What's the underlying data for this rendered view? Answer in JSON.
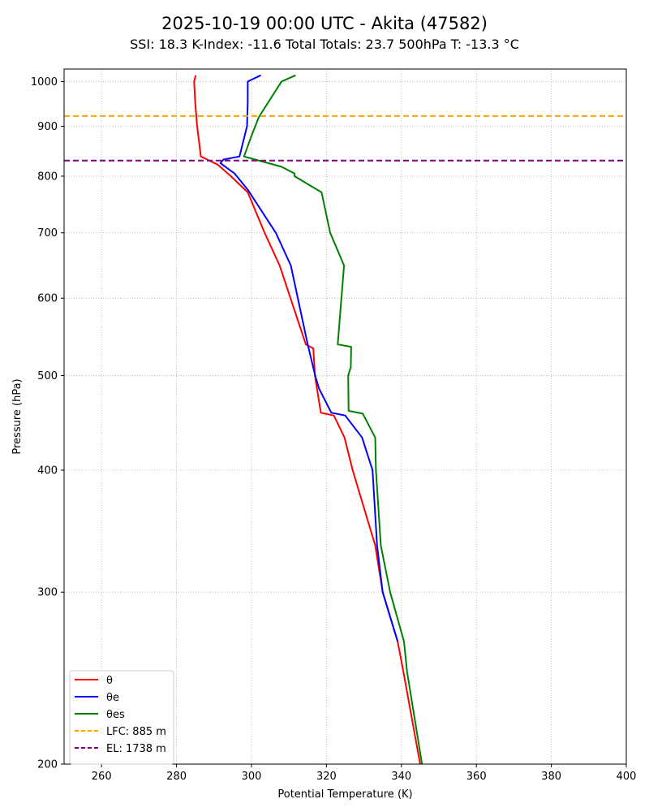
{
  "chart_data": {
    "type": "line",
    "title": "2025-10-19 00:00 UTC - Akita (47582)",
    "subtitle": "SSI: 18.3   K-Index: -11.6   Total Totals: 23.7   500hPa T: -13.3 °C",
    "xlabel": "Potential Temperature (K)",
    "ylabel": "Pressure (hPa)",
    "xlim": [
      250,
      400
    ],
    "ylim": [
      1030,
      200
    ],
    "yscale": "log",
    "grid": true,
    "legend_position": "lower-left",
    "x_ticks": [
      "260",
      "280",
      "300",
      "320",
      "340",
      "360",
      "380",
      "400"
    ],
    "y_ticks": [
      "200",
      "300",
      "400",
      "500",
      "600",
      "700",
      "800",
      "900",
      "1000"
    ],
    "series": [
      {
        "name": "θ",
        "color": "#ff0000",
        "points": [
          [
            285.1,
            1015
          ],
          [
            284.7,
            1000
          ],
          [
            285.0,
            950
          ],
          [
            285.5,
            900
          ],
          [
            286.5,
            838
          ],
          [
            291.0,
            822
          ],
          [
            294.5,
            800
          ],
          [
            299.0,
            770
          ],
          [
            303.5,
            700
          ],
          [
            307.5,
            648
          ],
          [
            314.5,
            538
          ],
          [
            316.5,
            533
          ],
          [
            316.8,
            510
          ],
          [
            316.9,
            500
          ],
          [
            318.5,
            458
          ],
          [
            322.0,
            455
          ],
          [
            324.8,
            432
          ],
          [
            327.0,
            400
          ],
          [
            333.0,
            335
          ],
          [
            335.0,
            300
          ],
          [
            339.0,
            267
          ],
          [
            340.5,
            249
          ],
          [
            345.0,
            200
          ]
        ]
      },
      {
        "name": "θe",
        "color": "#0000ff",
        "points": [
          [
            302.5,
            1015
          ],
          [
            299.0,
            1000
          ],
          [
            299.0,
            950
          ],
          [
            298.8,
            900
          ],
          [
            296.8,
            838
          ],
          [
            292.5,
            832
          ],
          [
            291.7,
            825
          ],
          [
            295.5,
            805
          ],
          [
            299.0,
            775
          ],
          [
            306.5,
            700
          ],
          [
            310.5,
            648
          ],
          [
            315.0,
            538
          ],
          [
            317.0,
            500
          ],
          [
            318.0,
            485
          ],
          [
            321.3,
            458
          ],
          [
            325.0,
            455
          ],
          [
            329.5,
            432
          ],
          [
            332.3,
            400
          ],
          [
            333.5,
            335
          ],
          [
            335.0,
            300
          ],
          [
            339.0,
            267
          ]
        ]
      },
      {
        "name": "θes",
        "color": "#008000",
        "points": [
          [
            311.8,
            1015
          ],
          [
            308.0,
            1000
          ],
          [
            302.0,
            920
          ],
          [
            300.0,
            880
          ],
          [
            298.0,
            838
          ],
          [
            301.0,
            832
          ],
          [
            308.0,
            818
          ],
          [
            311.5,
            805
          ],
          [
            311.5,
            800
          ],
          [
            318.7,
            770
          ],
          [
            321.0,
            700
          ],
          [
            324.7,
            648
          ],
          [
            323.0,
            538
          ],
          [
            326.6,
            535
          ],
          [
            326.5,
            510
          ],
          [
            325.8,
            500
          ],
          [
            325.9,
            460
          ],
          [
            329.7,
            457
          ],
          [
            333.0,
            432
          ],
          [
            333.2,
            400
          ],
          [
            334.5,
            335
          ],
          [
            337.0,
            300
          ],
          [
            340.7,
            267
          ],
          [
            341.5,
            249
          ],
          [
            345.5,
            200
          ]
        ]
      }
    ],
    "reference_lines": [
      {
        "name": "LFC: 885 m",
        "color": "#ffa500",
        "pressure": 922
      },
      {
        "name": "EL: 1738 m",
        "color": "#800080",
        "pressure": 830
      }
    ]
  }
}
